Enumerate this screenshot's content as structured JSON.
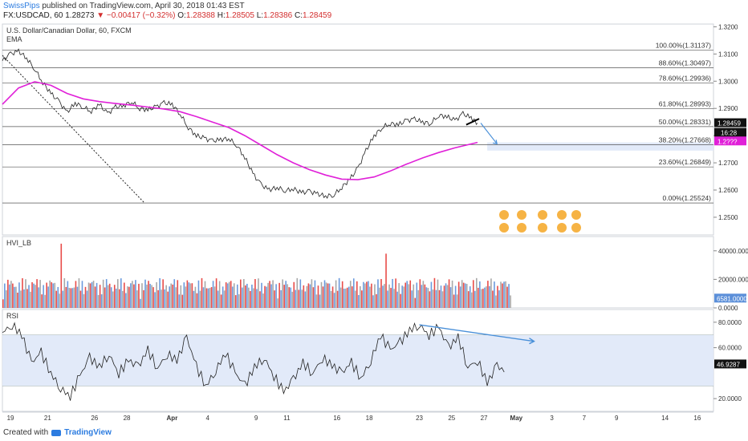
{
  "header": {
    "author": "SwissPips",
    "published_text": "published on TradingView.com, April 30, 2018 01:43 EST",
    "symbol": "FX:USDCAD, 60",
    "last": "1.28273",
    "change": "−0.00417 (−0.32%)",
    "o_label": "O:",
    "o_value": "1.28388",
    "h_label": "H:",
    "h_value": "1.28505",
    "l_label": "L:",
    "l_value": "1.28386",
    "c_label": "C:",
    "c_value": "1.28459"
  },
  "footer": {
    "created_with": "Created with",
    "brand": "TradingView"
  },
  "colors": {
    "ema": "#e020d8",
    "up": "#5b8fd9",
    "down": "#e53935",
    "neutral": "#9e9e9e",
    "band": "#dfe8f8",
    "arrow": "#4a90d9"
  },
  "chart_data": [
    {
      "type": "line",
      "title": "U.S. Dollar/Canadian Dollar, 60, FXCM",
      "indicator_label": "EMA",
      "ylim": [
        1.2435,
        1.321
      ],
      "y_ticks": [
        1.32,
        1.31,
        1.3,
        1.29,
        1.28,
        1.27,
        1.26,
        1.25
      ],
      "price_label": "1.28459",
      "time_label": "16:28",
      "ema_label": "1.2???",
      "fibonacci": [
        {
          "label": "100.00%(1.31137)",
          "value": 1.31137
        },
        {
          "label": "88.60%(1.30497)",
          "value": 1.30497
        },
        {
          "label": "78.60%(1.29936)",
          "value": 1.29936
        },
        {
          "label": "61.80%(1.28993)",
          "value": 1.28993
        },
        {
          "label": "50.00%(1.28331)",
          "value": 1.28331
        },
        {
          "label": "38.20%(1.27668)",
          "value": 1.27668
        },
        {
          "label": "23.60%(1.26849)",
          "value": 1.26849
        },
        {
          "label": "0.00%(1.25524)",
          "value": 1.25524
        }
      ],
      "series": [
        {
          "name": "Price",
          "points": [
            [
              0,
              1.3075
            ],
            [
              5,
              1.31
            ],
            [
              10,
              1.311
            ],
            [
              15,
              1.3085
            ],
            [
              20,
              1.3045
            ],
            [
              25,
              1.2995
            ],
            [
              30,
              1.2955
            ],
            [
              35,
              1.2925
            ],
            [
              40,
              1.2885
            ],
            [
              45,
              1.292
            ],
            [
              50,
              1.2905
            ],
            [
              55,
              1.289
            ],
            [
              60,
              1.2915
            ],
            [
              65,
              1.288
            ],
            [
              70,
              1.2905
            ],
            [
              75,
              1.291
            ],
            [
              80,
              1.2925
            ],
            [
              85,
              1.29
            ],
            [
              90,
              1.2895
            ],
            [
              95,
              1.2905
            ],
            [
              100,
              1.292
            ],
            [
              105,
              1.2915
            ],
            [
              110,
              1.288
            ],
            [
              115,
              1.283
            ],
            [
              120,
              1.28
            ],
            [
              125,
              1.279
            ],
            [
              130,
              1.278
            ],
            [
              135,
              1.2785
            ],
            [
              140,
              1.279
            ],
            [
              145,
              1.2765
            ],
            [
              150,
              1.272
            ],
            [
              155,
              1.266
            ],
            [
              160,
              1.262
            ],
            [
              165,
              1.26
            ],
            [
              170,
              1.261
            ],
            [
              175,
              1.2598
            ],
            [
              180,
              1.2605
            ],
            [
              185,
              1.259
            ],
            [
              190,
              1.2595
            ],
            [
              195,
              1.2585
            ],
            [
              200,
              1.2578
            ],
            [
              205,
              1.2582
            ],
            [
              210,
              1.261
            ],
            [
              215,
              1.264
            ],
            [
              220,
              1.268
            ],
            [
              225,
              1.2745
            ],
            [
              230,
              1.28
            ],
            [
              235,
              1.283
            ],
            [
              240,
              1.2845
            ],
            [
              245,
              1.284
            ],
            [
              250,
              1.2855
            ],
            [
              255,
              1.286
            ],
            [
              260,
              1.285
            ],
            [
              265,
              1.2845
            ],
            [
              270,
              1.2875
            ],
            [
              275,
              1.287
            ],
            [
              280,
              1.2855
            ],
            [
              285,
              1.288
            ],
            [
              290,
              1.2865
            ],
            [
              294,
              1.2846
            ]
          ]
        },
        {
          "name": "EMA",
          "points": [
            [
              0,
              1.2915
            ],
            [
              10,
              1.2975
            ],
            [
              20,
              1.2998
            ],
            [
              30,
              1.2985
            ],
            [
              40,
              1.2955
            ],
            [
              50,
              1.2935
            ],
            [
              60,
              1.2925
            ],
            [
              70,
              1.2918
            ],
            [
              80,
              1.2912
            ],
            [
              90,
              1.2905
            ],
            [
              100,
              1.2898
            ],
            [
              110,
              1.2888
            ],
            [
              120,
              1.287
            ],
            [
              130,
              1.285
            ],
            [
              140,
              1.283
            ],
            [
              150,
              1.28
            ],
            [
              160,
              1.2765
            ],
            [
              170,
              1.273
            ],
            [
              180,
              1.27
            ],
            [
              190,
              1.2675
            ],
            [
              200,
              1.2655
            ],
            [
              210,
              1.264
            ],
            [
              220,
              1.2638
            ],
            [
              230,
              1.2648
            ],
            [
              240,
              1.267
            ],
            [
              250,
              1.2695
            ],
            [
              260,
              1.2718
            ],
            [
              270,
              1.2738
            ],
            [
              280,
              1.2755
            ],
            [
              294,
              1.2775
            ]
          ]
        }
      ],
      "trendline": [
        [
          0,
          1.3095
        ],
        [
          88,
          1.2552
        ]
      ],
      "x_ticks": [
        {
          "label": "19",
          "x": 5,
          "bold": false
        },
        {
          "label": "21",
          "x": 28,
          "bold": false
        },
        {
          "label": "26",
          "x": 57,
          "bold": false
        },
        {
          "label": "28",
          "x": 77,
          "bold": false
        },
        {
          "label": "Apr",
          "x": 105,
          "bold": true
        },
        {
          "label": "4",
          "x": 127,
          "bold": false
        },
        {
          "label": "9",
          "x": 157,
          "bold": false
        },
        {
          "label": "11",
          "x": 176,
          "bold": false
        },
        {
          "label": "16",
          "x": 207,
          "bold": false
        },
        {
          "label": "18",
          "x": 227,
          "bold": false
        },
        {
          "label": "23",
          "x": 258,
          "bold": false
        },
        {
          "label": "25",
          "x": 278,
          "bold": false
        },
        {
          "label": "27",
          "x": 298,
          "bold": false
        },
        {
          "label": "May",
          "x": 318,
          "bold": true
        },
        {
          "label": "3",
          "x": 340,
          "bold": false
        },
        {
          "label": "7",
          "x": 360,
          "bold": false
        },
        {
          "label": "9",
          "x": 380,
          "bold": false
        },
        {
          "label": "14",
          "x": 410,
          "bold": false
        },
        {
          "label": "16",
          "x": 430,
          "bold": false
        }
      ],
      "xlim": [
        0,
        440
      ]
    },
    {
      "type": "bar",
      "title": "HVI_LB",
      "ylim": [
        0,
        50000
      ],
      "y_ticks": [
        {
          "label": "40000.0000",
          "value": 40000
        },
        {
          "label": "20000.0000",
          "value": 20000
        },
        {
          "label": "0.0000",
          "value": 0
        }
      ],
      "last_value_label": "6581.0000",
      "spikes": [
        {
          "x": 36,
          "value": 45000
        },
        {
          "x": 237,
          "value": 38000
        },
        {
          "x": 18,
          "value": 18000
        },
        {
          "x": 92,
          "value": 16000
        },
        {
          "x": 275,
          "value": 16000
        }
      ]
    },
    {
      "type": "line",
      "title": "RSI",
      "ylim": [
        10,
        90
      ],
      "y_ticks": [
        {
          "label": "80.0000",
          "value": 80
        },
        {
          "label": "60.0000",
          "value": 60
        },
        {
          "label": "20.0000",
          "value": 20
        }
      ],
      "band": [
        30,
        70
      ],
      "last_value_label": "46.9287",
      "points": [
        [
          0,
          72
        ],
        [
          6,
          78
        ],
        [
          12,
          70
        ],
        [
          18,
          48
        ],
        [
          24,
          56
        ],
        [
          30,
          40
        ],
        [
          36,
          28
        ],
        [
          42,
          22
        ],
        [
          48,
          38
        ],
        [
          54,
          52
        ],
        [
          60,
          45
        ],
        [
          66,
          55
        ],
        [
          72,
          40
        ],
        [
          78,
          50
        ],
        [
          84,
          45
        ],
        [
          90,
          58
        ],
        [
          96,
          44
        ],
        [
          102,
          55
        ],
        [
          108,
          50
        ],
        [
          114,
          68
        ],
        [
          120,
          45
        ],
        [
          126,
          30
        ],
        [
          132,
          42
        ],
        [
          138,
          56
        ],
        [
          144,
          40
        ],
        [
          150,
          30
        ],
        [
          156,
          45
        ],
        [
          162,
          52
        ],
        [
          168,
          38
        ],
        [
          174,
          25
        ],
        [
          180,
          35
        ],
        [
          186,
          48
        ],
        [
          192,
          40
        ],
        [
          198,
          52
        ],
        [
          204,
          46
        ],
        [
          210,
          40
        ],
        [
          216,
          48
        ],
        [
          222,
          36
        ],
        [
          228,
          50
        ],
        [
          234,
          70
        ],
        [
          240,
          58
        ],
        [
          246,
          64
        ],
        [
          252,
          74
        ],
        [
          258,
          78
        ],
        [
          264,
          70
        ],
        [
          270,
          76
        ],
        [
          276,
          60
        ],
        [
          282,
          68
        ],
        [
          288,
          45
        ],
        [
          294,
          50
        ],
        [
          300,
          32
        ],
        [
          306,
          46
        ],
        [
          312,
          40
        ]
      ],
      "divergence_line": [
        [
          258,
          78
        ],
        [
          329,
          65
        ]
      ]
    }
  ]
}
